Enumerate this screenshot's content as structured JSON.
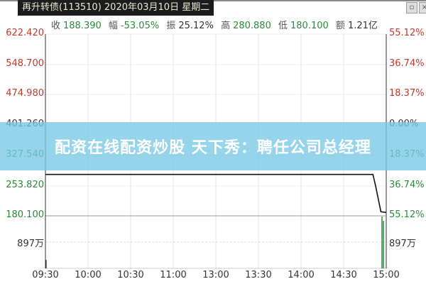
{
  "header": {
    "title": "再升转债(113510) 2020年03月10日 星期二"
  },
  "stats": [
    {
      "label": "收",
      "value": "188.390"
    },
    {
      "label": "幅",
      "value": "-53.05%"
    },
    {
      "label": "振",
      "value": "25.12%"
    },
    {
      "label": "高",
      "value": "280.880"
    },
    {
      "label": "低",
      "value": "180.100"
    },
    {
      "label": "额",
      "value": "1.21亿"
    }
  ],
  "banner": {
    "text": "配资在线配资炒股 天下秀：聘任公司总经理"
  },
  "colors": {
    "up": "#c0392b",
    "down": "#2a8a3a",
    "price_line": "#111111",
    "volume": "#2a8a3a"
  },
  "chart_data": {
    "type": "line",
    "title": "再升转债(113510) 2020年03月10日 星期二",
    "x_ticks": [
      "09:30",
      "10:00",
      "10:30",
      "11:00",
      "13:00",
      "13:30",
      "14:00",
      "14:30",
      "15:00"
    ],
    "price_ticks": [
      "622.420",
      "548.700",
      "474.980",
      "401.260",
      "327.540",
      "253.820",
      "180.100"
    ],
    "pct_ticks": [
      "55.12%",
      "36.74%",
      "18.37%",
      "0.00%",
      "18.37%",
      "36.74%",
      "55.12%"
    ],
    "volume_label": "897万",
    "ylim": [
      180.1,
      622.42
    ],
    "prev_close": 401.26,
    "series": [
      {
        "x": [
          "09:30",
          "14:55",
          "14:56",
          "14:58",
          "15:00"
        ],
        "y": [
          280.88,
          280.88,
          253.82,
          190.0,
          188.39
        ]
      }
    ],
    "volume": {
      "x": [
        "09:30",
        "14:58",
        "15:00"
      ],
      "y": [
        "small",
        "897万",
        "897万"
      ]
    }
  }
}
